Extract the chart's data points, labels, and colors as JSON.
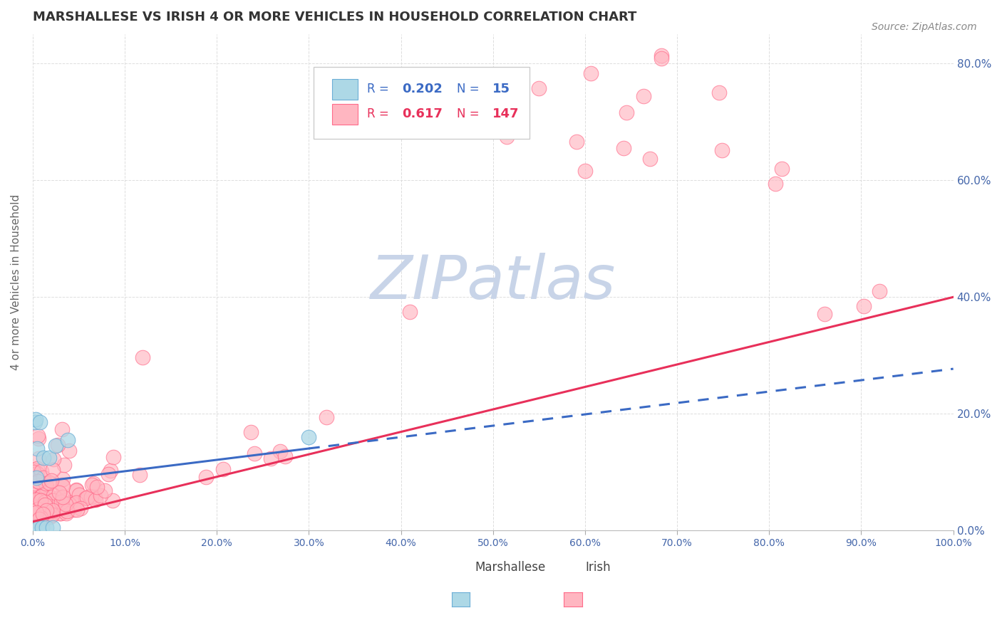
{
  "title": "MARSHALLESE VS IRISH 4 OR MORE VEHICLES IN HOUSEHOLD CORRELATION CHART",
  "source_text": "Source: ZipAtlas.com",
  "ylabel": "4 or more Vehicles in Household",
  "xlim": [
    0,
    1.0
  ],
  "ylim": [
    0,
    0.85
  ],
  "x_ticks": [
    0.0,
    0.1,
    0.2,
    0.3,
    0.4,
    0.5,
    0.6,
    0.7,
    0.8,
    0.9,
    1.0
  ],
  "y_ticks": [
    0.0,
    0.2,
    0.4,
    0.6,
    0.8
  ],
  "right_y_tick_labels": [
    "0.0%",
    "20.0%",
    "40.0%",
    "60.0%",
    "80.0%"
  ],
  "x_tick_labels": [
    "0.0%",
    "10.0%",
    "20.0%",
    "30.0%",
    "40.0%",
    "50.0%",
    "60.0%",
    "70.0%",
    "80.0%",
    "90.0%",
    "100.0%"
  ],
  "legend_r_marshallese": "0.202",
  "legend_n_marshallese": "15",
  "legend_r_irish": "0.617",
  "legend_n_irish": "147",
  "marshallese_color": "#ADD8E6",
  "marshallese_edge_color": "#6BAED6",
  "irish_color": "#FFB6C1",
  "irish_edge_color": "#FF6B8A",
  "marshallese_line_color": "#3B6AC4",
  "irish_line_color": "#E8305A",
  "watermark_color": "#C8D4E8",
  "grid_color": "#DDDDDD",
  "tick_color": "#4466AA",
  "title_color": "#333333",
  "source_color": "#888888",
  "ylabel_color": "#666666",
  "marshallese_x": [
    0.001,
    0.002,
    0.003,
    0.004,
    0.005,
    0.006,
    0.008,
    0.01,
    0.012,
    0.015,
    0.018,
    0.022,
    0.025,
    0.038,
    0.3
  ],
  "marshallese_y": [
    0.005,
    0.185,
    0.19,
    0.09,
    0.14,
    0.005,
    0.185,
    0.005,
    0.125,
    0.005,
    0.125,
    0.005,
    0.145,
    0.155,
    0.16
  ],
  "marsh_line_x0": 0.0,
  "marsh_line_x1": 0.3,
  "marsh_line_x_dash_end": 1.0,
  "marsh_line_slope": 0.195,
  "marsh_line_intercept": 0.082,
  "irish_line_x0": 0.0,
  "irish_line_x1": 1.0,
  "irish_line_slope": 0.385,
  "irish_line_intercept": 0.015
}
